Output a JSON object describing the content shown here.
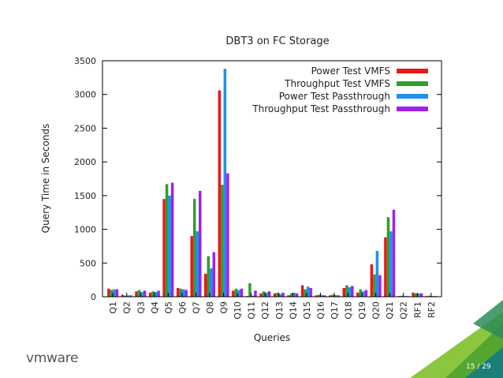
{
  "slide": {
    "logo_text": "vmware",
    "page_number": "15 / 29"
  },
  "chart_data": {
    "type": "bar",
    "title": "DBT3 on FC Storage",
    "xlabel": "Queries",
    "ylabel": "Query Time in Seconds",
    "ylim": [
      0,
      3500
    ],
    "yticks": [
      0,
      500,
      1000,
      1500,
      2000,
      2500,
      3000,
      3500
    ],
    "grid": false,
    "legend_position": "top-right",
    "categories": [
      "Q1",
      "Q2",
      "Q3",
      "Q4",
      "Q5",
      "Q6",
      "Q7",
      "Q8",
      "Q9",
      "Q10",
      "Q11",
      "Q12",
      "Q13",
      "Q14",
      "Q15",
      "Q16",
      "Q17",
      "Q18",
      "Q19",
      "Q20",
      "Q21",
      "Q22",
      "RF1",
      "RF2"
    ],
    "series": [
      {
        "name": "Power Test VMFS",
        "color": "#e41a1c",
        "values": [
          120,
          30,
          80,
          60,
          1450,
          130,
          900,
          340,
          3060,
          90,
          10,
          50,
          50,
          20,
          170,
          20,
          20,
          130,
          60,
          480,
          880,
          10,
          60,
          10
        ]
      },
      {
        "name": "Throughput Test VMFS",
        "color": "#2ca02c",
        "values": [
          100,
          15,
          100,
          80,
          1670,
          120,
          1450,
          600,
          1660,
          120,
          200,
          80,
          60,
          50,
          110,
          30,
          30,
          170,
          110,
          330,
          1180,
          15,
          50,
          15
        ]
      },
      {
        "name": "Power Test Passthrough",
        "color": "#1f8ff0",
        "values": [
          110,
          20,
          70,
          70,
          1500,
          110,
          970,
          420,
          3380,
          100,
          15,
          60,
          40,
          60,
          150,
          25,
          25,
          140,
          80,
          680,
          970,
          10,
          50,
          10
        ]
      },
      {
        "name": "Throughput Test Passthrough",
        "color": "#a020f0",
        "values": [
          110,
          20,
          90,
          90,
          1690,
          100,
          1570,
          660,
          1830,
          120,
          90,
          80,
          60,
          50,
          130,
          20,
          20,
          160,
          100,
          320,
          1290,
          10,
          50,
          10
        ]
      }
    ]
  }
}
